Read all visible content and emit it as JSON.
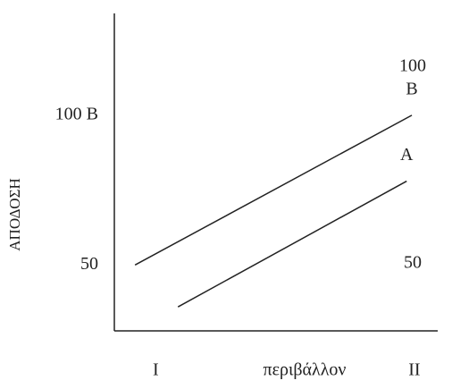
{
  "chart_data": {
    "type": "line",
    "y_label": "ΑΠΟΔΟΣΗ",
    "x_label": "περιβάλλον",
    "xlim": [
      -0.16,
      1.09
    ],
    "xticks": [
      {
        "value": 0,
        "label": "I"
      },
      {
        "value": 1,
        "label": "II"
      }
    ],
    "ylim": [
      28,
      134
    ],
    "yticks": [
      {
        "value": 50,
        "label": "50"
      },
      {
        "value": 100,
        "label": "100 B"
      }
    ],
    "y2lim": [
      33,
      113.6
    ],
    "y2ticks": [
      50,
      100
    ],
    "series": [
      {
        "name": "B",
        "color": "#222222",
        "x": [
          -0.08,
          0.99
        ],
        "values": [
          50,
          100
        ]
      },
      {
        "name": "A",
        "color": "#222222",
        "x": [
          0.086,
          0.97
        ],
        "values": [
          36,
          78
        ]
      }
    ]
  }
}
